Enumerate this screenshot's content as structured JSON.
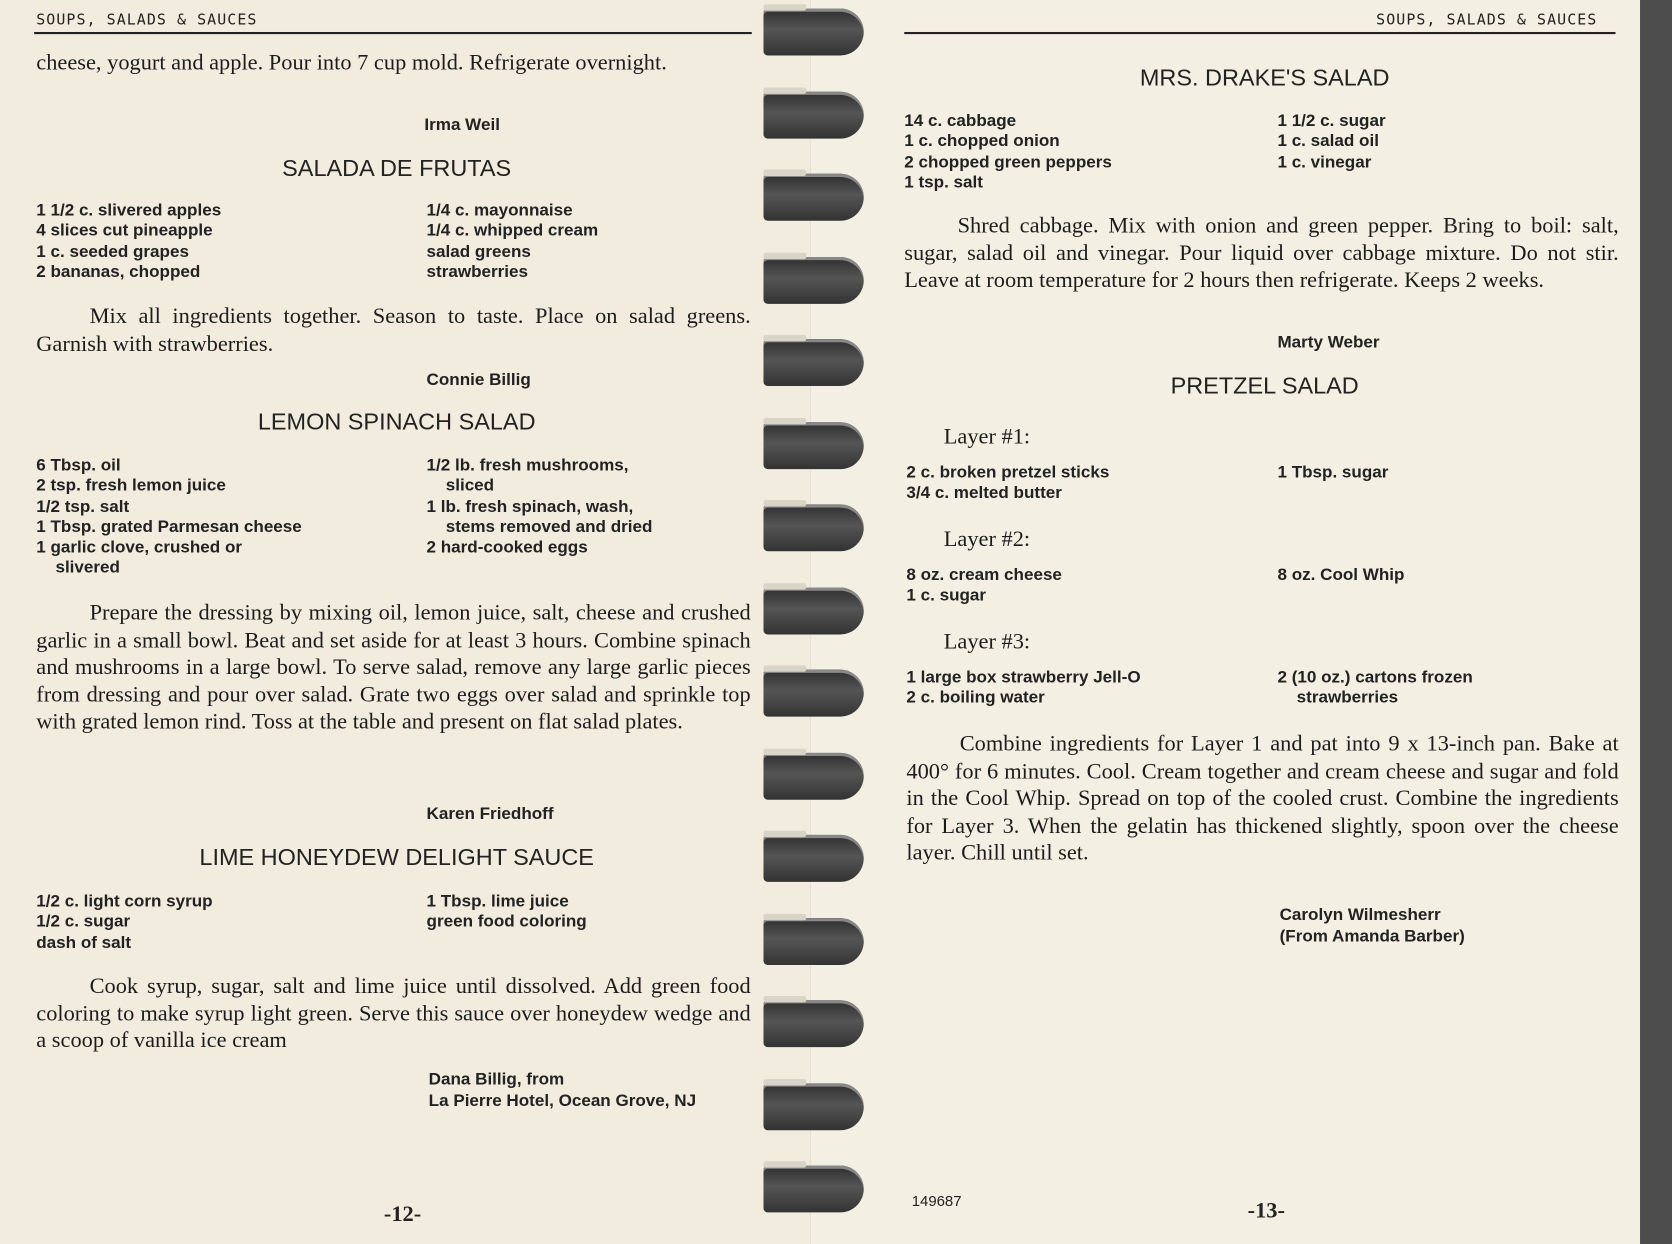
{
  "left_page": {
    "header": "SOUPS, SALADS & SAUCES",
    "intro_text": "cheese, yogurt and apple. Pour into 7 cup mold. Refrigerate overnight.",
    "intro_author": "Irma Weil",
    "recipes": [
      {
        "title": "SALADA DE FRUTAS",
        "col1": [
          "1 1/2 c. slivered apples",
          "4 slices cut pineapple",
          "1 c. seeded grapes",
          "2 bananas, chopped"
        ],
        "col2": [
          "1/4 c. mayonnaise",
          "1/4 c. whipped cream",
          "salad greens",
          "strawberries"
        ],
        "directions": "Mix all ingredients together. Season to taste. Place on salad greens. Garnish with strawberries.",
        "author": "Connie Billig"
      },
      {
        "title": "LEMON SPINACH SALAD",
        "col1": [
          "6 Tbsp. oil",
          "2 tsp. fresh lemon juice",
          "1/2 tsp. salt",
          "1 Tbsp. grated Parmesan cheese",
          "1 garlic clove, crushed or",
          "slivered"
        ],
        "col2": [
          "1/2 lb. fresh mushrooms,",
          "sliced",
          "1 lb. fresh spinach, wash,",
          "stems removed and dried",
          "2 hard-cooked eggs"
        ],
        "directions": "Prepare the dressing by mixing oil, lemon juice, salt, cheese and crushed garlic in a small bowl. Beat and set aside for at least 3 hours. Combine spinach and mushrooms in a large bowl. To serve salad, remove any large garlic pieces from dressing and pour over salad. Grate two eggs over salad and sprinkle top with grated lemon rind. Toss at the table and present on flat salad plates.",
        "author": "Karen Friedhoff"
      },
      {
        "title": "LIME HONEYDEW DELIGHT SAUCE",
        "col1": [
          "1/2 c. light corn syrup",
          "1/2 c. sugar",
          "dash of salt"
        ],
        "col2": [
          "1 Tbsp. lime juice",
          "green food coloring"
        ],
        "directions": "Cook syrup, sugar, salt and lime juice until dissolved. Add green food coloring to make syrup light green. Serve this sauce over honeydew wedge and a scoop of vanilla ice cream",
        "author": [
          "Dana Billig, from",
          "La Pierre Hotel, Ocean Grove, NJ"
        ]
      }
    ],
    "page_number": "-12-"
  },
  "right_page": {
    "header": "SOUPS, SALADS & SAUCES",
    "recipes": [
      {
        "title": "MRS. DRAKE'S SALAD",
        "col1": [
          "14 c. cabbage",
          "1 c. chopped onion",
          "2 chopped green peppers",
          "1 tsp. salt"
        ],
        "col2": [
          "1 1/2 c. sugar",
          "1 c. salad oil",
          "1 c. vinegar"
        ],
        "directions": "Shred cabbage. Mix with onion and green pepper. Bring to boil: salt, sugar, salad oil and vinegar. Pour liquid over cabbage mixture. Do not stir. Leave at room temperature for 2 hours then refrigerate. Keeps 2 weeks.",
        "author": "Marty Weber"
      },
      {
        "title": "PRETZEL SALAD",
        "layers": [
          {
            "label": "Layer #1:",
            "col1": [
              "2 c. broken pretzel sticks",
              "3/4 c. melted butter"
            ],
            "col2": [
              "1 Tbsp. sugar"
            ]
          },
          {
            "label": "Layer #2:",
            "col1": [
              "8 oz. cream cheese",
              "1 c. sugar"
            ],
            "col2": [
              "8 oz. Cool Whip"
            ]
          },
          {
            "label": "Layer #3:",
            "col1": [
              "1 large box strawberry Jell-O",
              "2 c. boiling water"
            ],
            "col2": [
              "2 (10 oz.) cartons frozen",
              "strawberries"
            ]
          }
        ],
        "directions": "Combine ingredients for Layer 1 and pat into 9 x 13-inch pan. Bake at 400° for 6 minutes. Cool. Cream together and cream cheese and sugar and fold in the Cool Whip. Spread on top of the cooled crust. Combine the ingredients for Layer 3. When the gelatin has thickened slightly, spoon over the cheese layer. Chill until set.",
        "author": [
          "Carolyn Wilmesherr",
          "(From Amanda Barber)"
        ]
      }
    ],
    "code": "149687",
    "page_number": "-13-"
  },
  "colors": {
    "paper": "#f2ecdf",
    "ink": "#1c1c1c",
    "spiral": "#3a3a3a"
  }
}
